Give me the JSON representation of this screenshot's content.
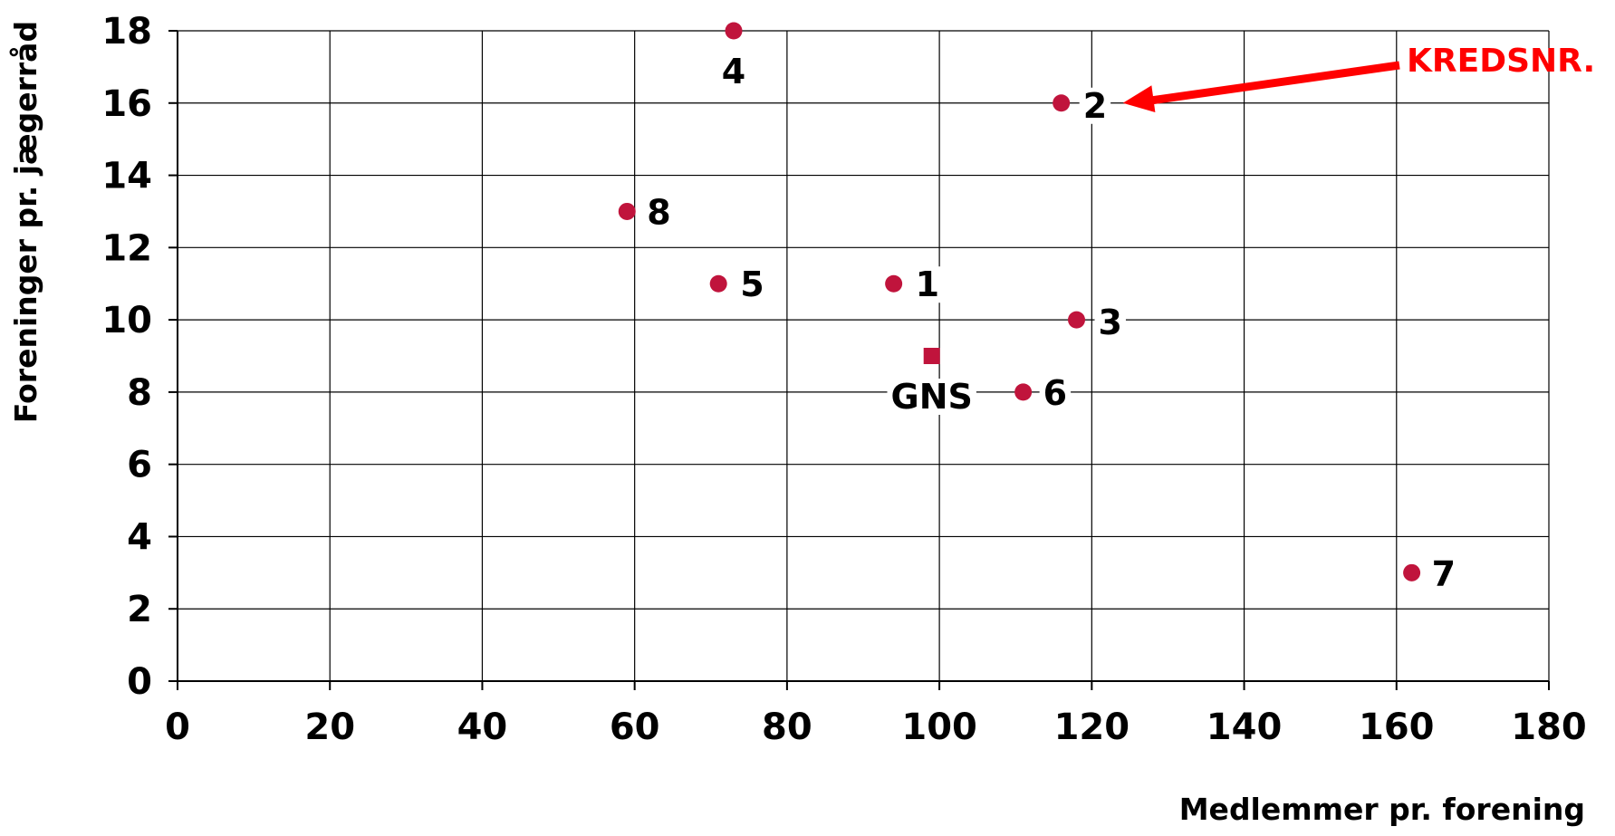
{
  "chart_data": {
    "type": "scatter",
    "title": "",
    "xlabel": "Medlemmer pr. forening",
    "ylabel": "Foreninger pr. jægerråd",
    "xlim": [
      0,
      180
    ],
    "ylim": [
      0,
      18
    ],
    "x_ticks": [
      "0",
      "20",
      "40",
      "60",
      "80",
      "100",
      "120",
      "140",
      "160",
      "180"
    ],
    "y_ticks": [
      "0",
      "2",
      "4",
      "6",
      "8",
      "10",
      "12",
      "14",
      "16",
      "18"
    ],
    "grid": true,
    "points": [
      {
        "label": "1",
        "x": 94,
        "y": 11,
        "marker": "circle"
      },
      {
        "label": "2",
        "x": 116,
        "y": 16,
        "marker": "circle"
      },
      {
        "label": "3",
        "x": 118,
        "y": 10,
        "marker": "circle"
      },
      {
        "label": "4",
        "x": 73,
        "y": 18,
        "marker": "circle"
      },
      {
        "label": "5",
        "x": 71,
        "y": 11,
        "marker": "circle"
      },
      {
        "label": "6",
        "x": 111,
        "y": 8,
        "marker": "circle"
      },
      {
        "label": "7",
        "x": 162,
        "y": 3,
        "marker": "circle"
      },
      {
        "label": "8",
        "x": 59,
        "y": 13,
        "marker": "circle"
      },
      {
        "label": "GNS",
        "x": 99,
        "y": 9,
        "marker": "square"
      }
    ],
    "annotation": {
      "text": "KREDSNR.",
      "color": "#ff0000",
      "points_to": "2"
    },
    "marker_color": "#c0143c"
  }
}
